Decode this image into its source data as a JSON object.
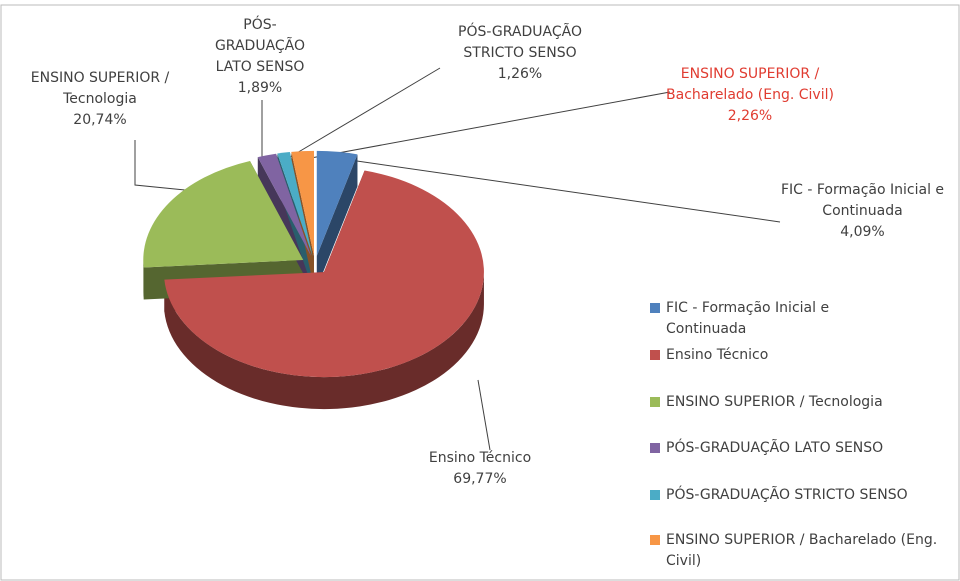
{
  "chart_data": {
    "type": "pie3d",
    "categories": [
      "FIC - Formação Inicial e Continuada",
      "Ensino Técnico",
      "ENSINO SUPERIOR / Tecnologia",
      "PÓS-GRADUAÇÃO LATO SENSO",
      "PÓS-GRADUAÇÃO STRICTO SENSO",
      "ENSINO SUPERIOR / Bacharelado (Eng. Civil)"
    ],
    "values": [
      4.09,
      69.77,
      20.74,
      1.89,
      1.26,
      2.26
    ],
    "value_labels": [
      "4,09%",
      "69,77%",
      "20,74%",
      "1,89%",
      "1,26%",
      "2,26%"
    ],
    "colors": [
      "#4f81bd",
      "#c0504d",
      "#9bbb59",
      "#8064a2",
      "#4bacc6",
      "#f79646"
    ],
    "label_colors": [
      "#404040",
      "#404040",
      "#404040",
      "#404040",
      "#404040",
      "#e03c31"
    ],
    "legend": "right"
  }
}
